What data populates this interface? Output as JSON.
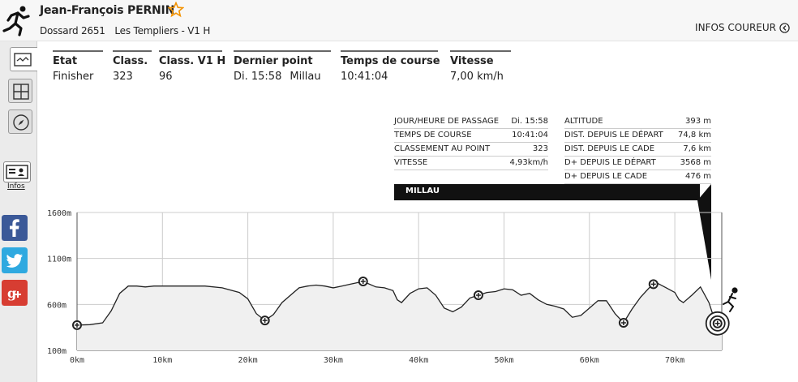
{
  "header": {
    "runner_name": "Jean-François PERNIN",
    "bib": "Dossard 2651",
    "race": "Les Templiers - V1 H",
    "infos_link": "INFOS COUREUR"
  },
  "sidebar": {
    "infos_label": "Infos"
  },
  "stats": [
    {
      "label": "Etat",
      "value": [
        "Finisher"
      ]
    },
    {
      "label": "Class.",
      "value": [
        "323"
      ]
    },
    {
      "label": "Class. V1 H",
      "value": [
        "96"
      ]
    },
    {
      "label": "Dernier point",
      "value": [
        "Di. 15:58",
        "Millau"
      ]
    },
    {
      "label": "Temps de course",
      "value": [
        "10:41:04"
      ]
    },
    {
      "label": "Vitesse",
      "value": [
        "7,00 km/h"
      ]
    }
  ],
  "tooltip": {
    "left_rows": [
      {
        "k": "JOUR/HEURE DE PASSAGE",
        "v": "Di. 15:58"
      },
      {
        "k": "TEMPS DE COURSE",
        "v": "10:41:04"
      },
      {
        "k": "CLASSEMENT AU POINT",
        "v": "323"
      },
      {
        "k": "VITESSE",
        "v": "4,93km/h"
      }
    ],
    "right_rows": [
      {
        "k": "ALTITUDE",
        "v": "393 m"
      },
      {
        "k": "DIST. DEPUIS LE DÉPART",
        "v": "74,8 km"
      },
      {
        "k": "DIST. DEPUIS LE CADE",
        "v": "7,6 km"
      },
      {
        "k": "D+ DEPUIS LE DÉPART",
        "v": "3568 m"
      },
      {
        "k": "D+ DEPUIS LE CADE",
        "v": "476 m"
      }
    ],
    "point_name": "MILLAU"
  },
  "chart_data": {
    "type": "area",
    "xlabel": "",
    "ylabel": "",
    "x_ticks": [
      "0km",
      "10km",
      "20km",
      "30km",
      "40km",
      "50km",
      "60km",
      "70km"
    ],
    "y_ticks": [
      "100m",
      "600m",
      "1100m",
      "1600m"
    ],
    "xlim": [
      0,
      75.5
    ],
    "ylim": [
      100,
      1600
    ],
    "profile": [
      [
        0,
        375
      ],
      [
        1.5,
        380
      ],
      [
        3,
        400
      ],
      [
        4,
        530
      ],
      [
        5,
        720
      ],
      [
        6,
        800
      ],
      [
        7,
        800
      ],
      [
        8,
        790
      ],
      [
        9,
        800
      ],
      [
        11,
        800
      ],
      [
        13,
        800
      ],
      [
        15,
        800
      ],
      [
        17,
        780
      ],
      [
        19,
        730
      ],
      [
        20,
        660
      ],
      [
        21,
        500
      ],
      [
        22,
        425
      ],
      [
        23,
        490
      ],
      [
        24,
        620
      ],
      [
        25,
        700
      ],
      [
        26,
        780
      ],
      [
        27,
        800
      ],
      [
        28,
        810
      ],
      [
        29,
        800
      ],
      [
        30,
        780
      ],
      [
        31,
        800
      ],
      [
        32,
        820
      ],
      [
        33,
        840
      ],
      [
        34,
        830
      ],
      [
        35,
        790
      ],
      [
        36,
        780
      ],
      [
        37,
        750
      ],
      [
        37.5,
        650
      ],
      [
        38,
        620
      ],
      [
        39,
        720
      ],
      [
        40,
        770
      ],
      [
        41,
        780
      ],
      [
        42,
        700
      ],
      [
        43,
        560
      ],
      [
        44,
        520
      ],
      [
        45,
        570
      ],
      [
        46,
        670
      ],
      [
        47,
        700
      ],
      [
        48,
        730
      ],
      [
        49,
        740
      ],
      [
        50,
        770
      ],
      [
        51,
        760
      ],
      [
        52,
        700
      ],
      [
        53,
        720
      ],
      [
        54,
        650
      ],
      [
        55,
        600
      ],
      [
        56,
        580
      ],
      [
        57,
        550
      ],
      [
        58,
        460
      ],
      [
        59,
        480
      ],
      [
        60,
        560
      ],
      [
        61,
        640
      ],
      [
        62,
        640
      ],
      [
        63,
        500
      ],
      [
        64,
        400
      ],
      [
        65,
        550
      ],
      [
        66,
        680
      ],
      [
        67,
        780
      ],
      [
        68,
        830
      ],
      [
        69,
        780
      ],
      [
        70,
        730
      ],
      [
        70.5,
        650
      ],
      [
        71,
        620
      ],
      [
        72,
        700
      ],
      [
        73,
        790
      ],
      [
        74,
        620
      ],
      [
        74.8,
        393
      ],
      [
        75.5,
        393
      ]
    ],
    "checkpoints": [
      {
        "x": 0.0,
        "y": 375
      },
      {
        "x": 22.0,
        "y": 425
      },
      {
        "x": 33.5,
        "y": 850
      },
      {
        "x": 47.0,
        "y": 700
      },
      {
        "x": 64.0,
        "y": 400
      },
      {
        "x": 67.5,
        "y": 820
      },
      {
        "x": 75.0,
        "y": 393
      }
    ],
    "grid": true,
    "colors": {
      "line": "#222222",
      "fill": "#f0f0f0",
      "grid": "#cccccc",
      "marker": "#222222"
    }
  }
}
